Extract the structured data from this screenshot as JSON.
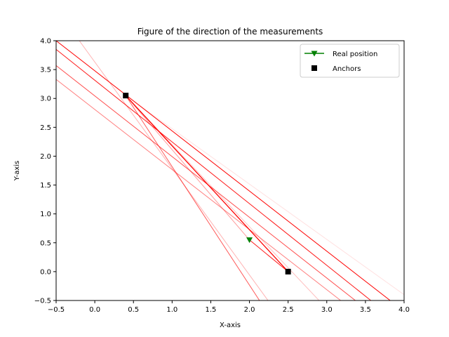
{
  "chart_data": {
    "type": "line",
    "title": "Figure of the direction of the measurements",
    "xlabel": "X-axis",
    "ylabel": "Y-axis",
    "xlim": [
      -0.5,
      4.0
    ],
    "ylim": [
      -0.5,
      4.0
    ],
    "grid": false,
    "legend_position": "top-right",
    "xticks": [
      -0.5,
      0.0,
      0.5,
      1.0,
      1.5,
      2.0,
      2.5,
      3.0,
      3.5,
      4.0
    ],
    "xtick_labels": [
      "−0.5",
      "0.0",
      "0.5",
      "1.0",
      "1.5",
      "2.0",
      "2.5",
      "3.0",
      "3.5",
      "4.0"
    ],
    "yticks": [
      -0.5,
      0.0,
      0.5,
      1.0,
      1.5,
      2.0,
      2.5,
      3.0,
      3.5,
      4.0
    ],
    "ytick_labels": [
      "−0.5",
      "0.0",
      "0.5",
      "1.0",
      "1.5",
      "2.0",
      "2.5",
      "3.0",
      "3.5",
      "4.0"
    ],
    "colors": {
      "measurement": "#ff0000",
      "real_position": "#008000",
      "anchor": "#000000"
    },
    "legend": [
      {
        "label": "Real position",
        "marker": "triangle-down",
        "color": "#008000"
      },
      {
        "label": "Anchors",
        "marker": "square",
        "color": "#000000"
      }
    ],
    "real_position": {
      "x": 2.0,
      "y": 0.55
    },
    "anchors": [
      {
        "x": 0.4,
        "y": 3.05
      },
      {
        "x": 2.5,
        "y": 0.0
      }
    ],
    "anchor_connections": [
      {
        "from": [
          0.4,
          3.05
        ],
        "to": [
          2.5,
          0.0
        ],
        "opacity": 1.0
      },
      {
        "from": [
          0.4,
          3.05
        ],
        "to": [
          2.5,
          0.0
        ],
        "opacity": 0.6
      },
      {
        "from": [
          0.4,
          3.05
        ],
        "to": [
          2.5,
          0.0
        ],
        "opacity": 0.8
      }
    ],
    "measurement_lines": [
      {
        "from": [
          -0.5,
          4.0
        ],
        "to": [
          3.82,
          -0.5
        ],
        "opacity": 1.0
      },
      {
        "from": [
          -0.5,
          3.85
        ],
        "to": [
          3.57,
          -0.5
        ],
        "opacity": 0.9
      },
      {
        "from": [
          -0.5,
          3.57
        ],
        "to": [
          3.37,
          -0.5
        ],
        "opacity": 0.7
      },
      {
        "from": [
          -0.5,
          3.33
        ],
        "to": [
          3.18,
          -0.5
        ],
        "opacity": 0.5
      },
      {
        "from": [
          -0.2,
          4.0
        ],
        "to": [
          2.24,
          -0.5
        ],
        "opacity": 0.3
      },
      {
        "from": [
          0.4,
          3.05
        ],
        "to": [
          2.13,
          -0.5
        ],
        "opacity": 0.65
      },
      {
        "from": [
          0.4,
          3.05
        ],
        "to": [
          4.0,
          -0.4
        ],
        "opacity": 0.12
      },
      {
        "from": [
          0.4,
          3.05
        ],
        "to": [
          2.9,
          -0.5
        ],
        "opacity": 0.25
      },
      {
        "from": [
          0.4,
          3.05
        ],
        "to": [
          2.5,
          0.0
        ],
        "opacity": 0.35
      },
      {
        "from": [
          0.4,
          3.05
        ],
        "to": [
          2.5,
          0.0
        ],
        "opacity": 0.5
      }
    ],
    "real_position_connections": [
      {
        "from": [
          2.0,
          0.55
        ],
        "to": [
          2.5,
          0.0
        ],
        "opacity": 0.9
      },
      {
        "from": [
          2.0,
          0.55
        ],
        "to": [
          0.4,
          3.05
        ],
        "opacity": 0.4
      }
    ]
  }
}
